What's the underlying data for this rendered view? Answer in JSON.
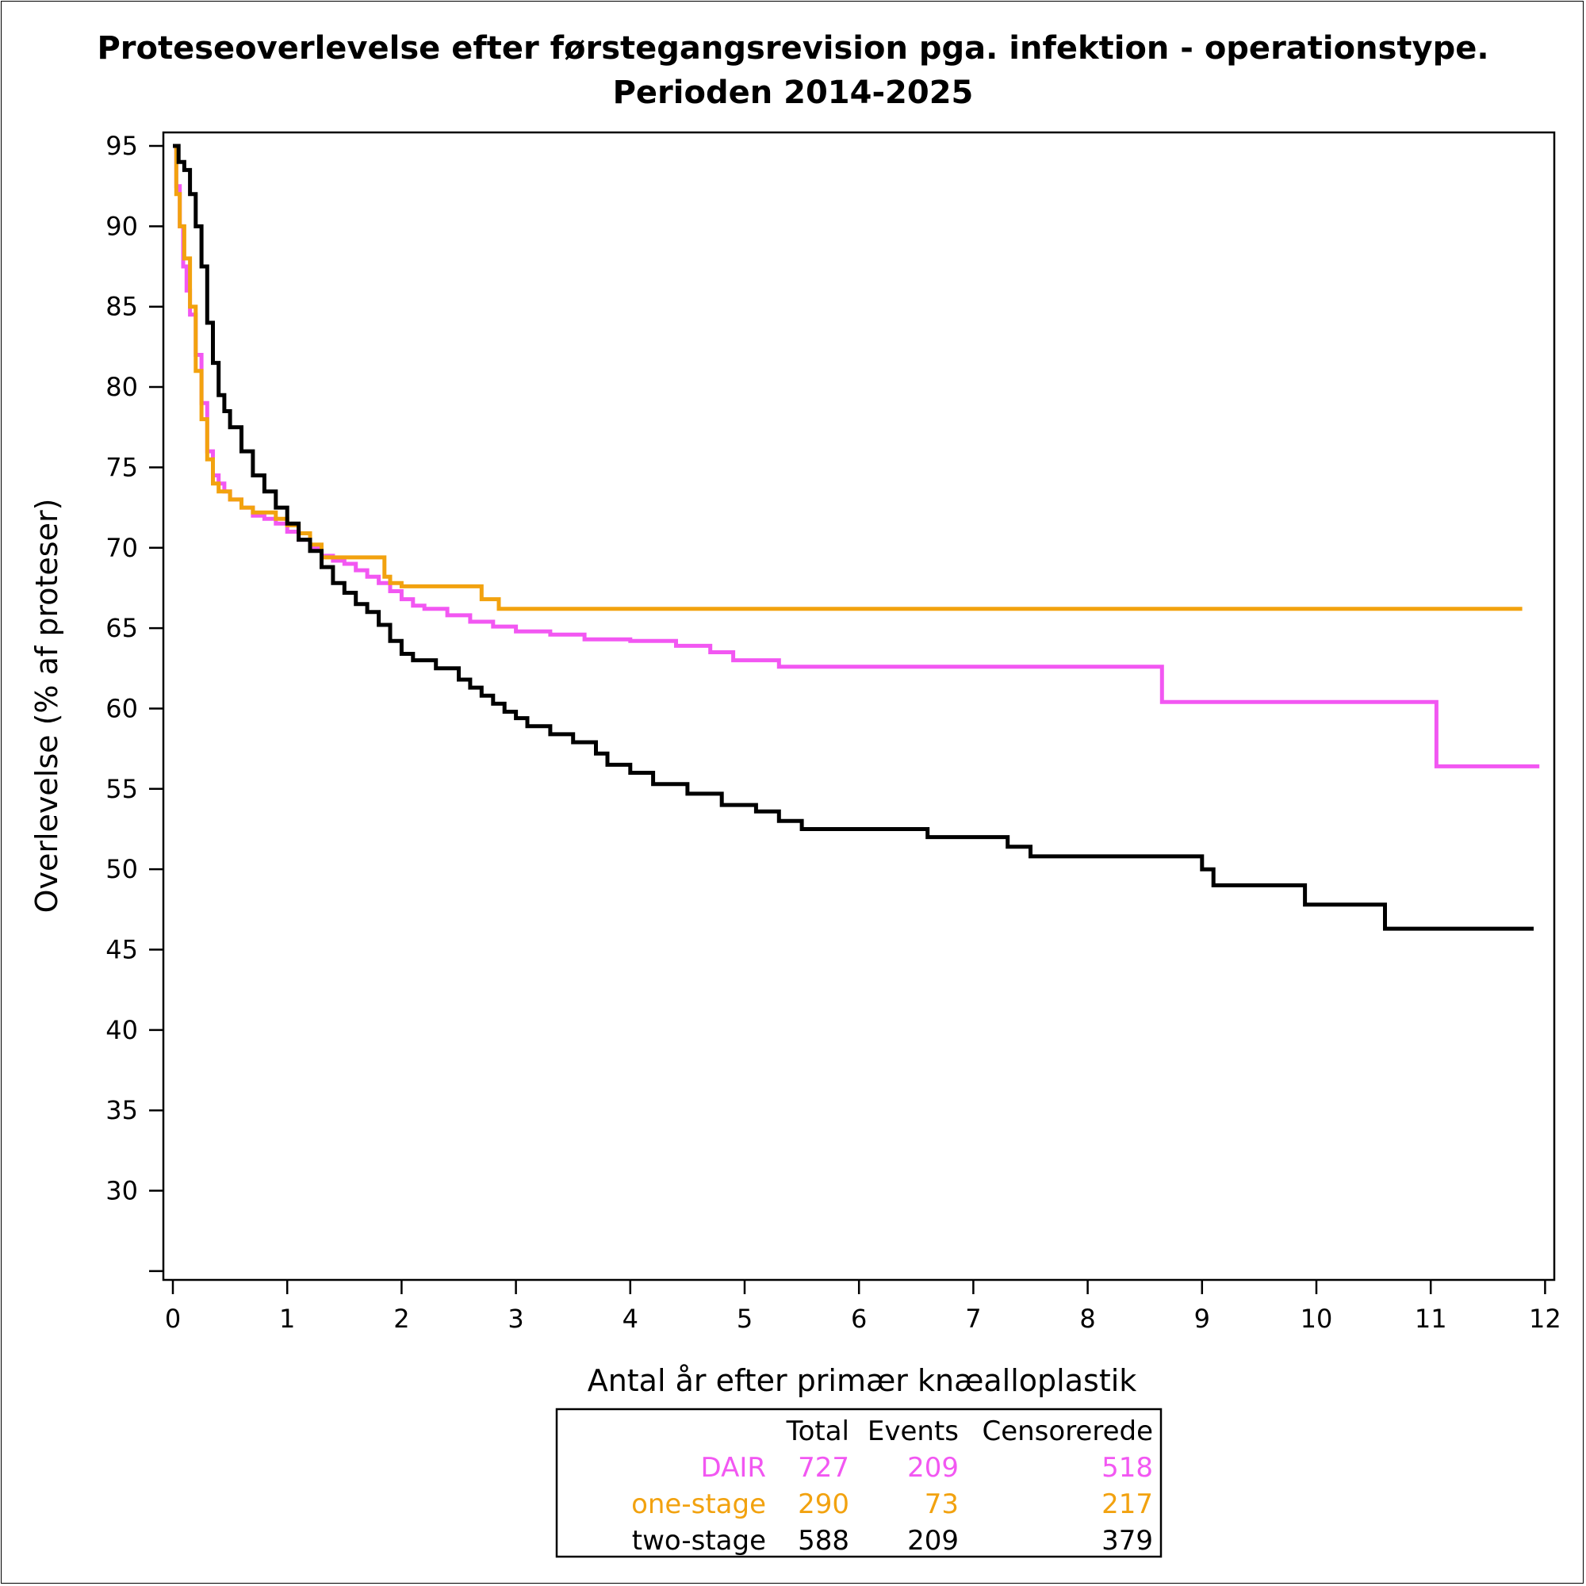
{
  "chart_data": {
    "type": "line",
    "step": true,
    "title": "Proteseoverlevelse efter førstegangsrevision pga. infektion - operationstype.",
    "subtitle": "Perioden 2014-2025",
    "xlabel": "Antal år efter primær knæalloplastik",
    "ylabel": "Overlevelse (% af proteser)",
    "xlim": [
      0,
      12
    ],
    "ylim": [
      25,
      95
    ],
    "xticks": [
      0,
      1,
      2,
      3,
      4,
      5,
      6,
      7,
      8,
      9,
      10,
      11,
      12
    ],
    "yticks": [
      95,
      90,
      85,
      80,
      75,
      70,
      65,
      60,
      55,
      50,
      45,
      40,
      35,
      30
    ],
    "grid": false,
    "series": [
      {
        "name": "DAIR",
        "color": "#f257f2",
        "x": [
          0,
          0.03,
          0.06,
          0.09,
          0.12,
          0.15,
          0.2,
          0.25,
          0.3,
          0.35,
          0.4,
          0.45,
          0.5,
          0.6,
          0.7,
          0.8,
          0.9,
          1.0,
          1.1,
          1.2,
          1.3,
          1.4,
          1.5,
          1.6,
          1.7,
          1.8,
          1.9,
          2.0,
          2.1,
          2.2,
          2.4,
          2.6,
          2.8,
          3.0,
          3.3,
          3.6,
          4.0,
          4.4,
          4.7,
          4.9,
          5.3,
          8.65,
          11.05,
          11.95
        ],
        "y": [
          95,
          92.5,
          90,
          87.5,
          86,
          84.5,
          82,
          79,
          76,
          74.5,
          74,
          73.5,
          73,
          72.5,
          72,
          71.8,
          71.5,
          71,
          70.5,
          70,
          69.5,
          69.2,
          69,
          68.6,
          68.2,
          67.8,
          67.3,
          66.8,
          66.4,
          66.2,
          65.8,
          65.4,
          65.1,
          64.8,
          64.6,
          64.3,
          64.2,
          63.9,
          63.5,
          63.0,
          62.6,
          60.4,
          56.4,
          56.4
        ]
      },
      {
        "name": "one-stage",
        "color": "#f2a20f",
        "x": [
          0,
          0.03,
          0.06,
          0.1,
          0.15,
          0.2,
          0.25,
          0.3,
          0.35,
          0.4,
          0.5,
          0.6,
          0.7,
          0.9,
          1.0,
          1.1,
          1.2,
          1.3,
          1.85,
          1.9,
          2.0,
          2.7,
          2.85,
          11.8
        ],
        "y": [
          95,
          92,
          90,
          88,
          85,
          81,
          78,
          75.5,
          74,
          73.5,
          73,
          72.5,
          72.2,
          71.8,
          71.4,
          70.9,
          70.2,
          69.4,
          68.2,
          67.8,
          67.6,
          66.8,
          66.2,
          66.2
        ]
      },
      {
        "name": "two-stage",
        "color": "#000000",
        "x": [
          0,
          0.05,
          0.1,
          0.15,
          0.2,
          0.25,
          0.3,
          0.35,
          0.4,
          0.45,
          0.5,
          0.6,
          0.7,
          0.8,
          0.9,
          1.0,
          1.1,
          1.2,
          1.3,
          1.4,
          1.5,
          1.6,
          1.7,
          1.8,
          1.9,
          2.0,
          2.1,
          2.3,
          2.5,
          2.6,
          2.7,
          2.8,
          2.9,
          3.0,
          3.1,
          3.3,
          3.5,
          3.7,
          3.8,
          4.0,
          4.2,
          4.5,
          4.8,
          5.1,
          5.3,
          5.5,
          6.0,
          6.6,
          7.3,
          7.5,
          8.5,
          9.0,
          9.1,
          9.9,
          10.6,
          11.9
        ],
        "y": [
          95,
          94,
          93.5,
          92,
          90,
          87.5,
          84,
          81.5,
          79.5,
          78.5,
          77.5,
          76,
          74.5,
          73.5,
          72.5,
          71.5,
          70.5,
          69.8,
          68.8,
          67.8,
          67.2,
          66.5,
          66.0,
          65.2,
          64.2,
          63.4,
          63.0,
          62.5,
          61.8,
          61.3,
          60.8,
          60.3,
          59.8,
          59.4,
          58.9,
          58.4,
          57.9,
          57.2,
          56.5,
          56.0,
          55.3,
          54.7,
          54.0,
          53.6,
          53.0,
          52.5,
          52.5,
          52.0,
          51.4,
          50.8,
          50.8,
          50.0,
          49.0,
          47.8,
          46.3,
          46.3
        ]
      }
    ],
    "stats_table": {
      "headers": [
        "",
        "Total",
        "Events",
        "Censorerede"
      ],
      "rows": [
        {
          "label": "DAIR",
          "total": "727",
          "events": "209",
          "censored": "518",
          "color": "#f257f2"
        },
        {
          "label": "one-stage",
          "total": "290",
          "events": "73",
          "censored": "217",
          "color": "#f2a20f"
        },
        {
          "label": "two-stage",
          "total": "588",
          "events": "209",
          "censored": "379",
          "color": "#000000"
        }
      ]
    }
  }
}
